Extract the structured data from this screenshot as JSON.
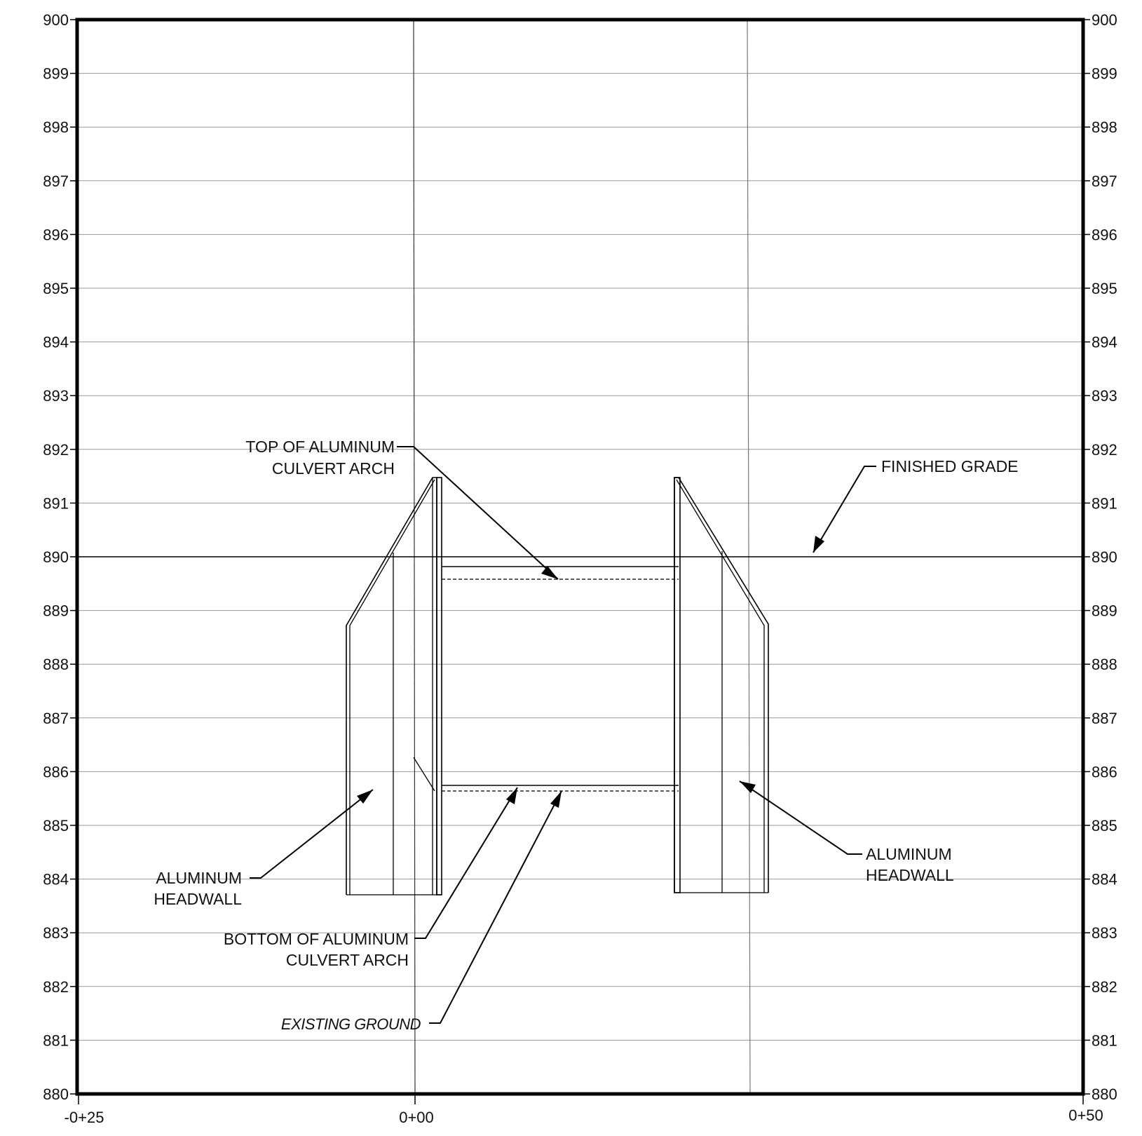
{
  "diagram": {
    "type": "culvert-profile",
    "elevation_axis": {
      "min": 880,
      "max": 900,
      "step": 1
    },
    "station_labels": {
      "left": "-0+25",
      "center": "0+00",
      "right": "0+50"
    },
    "finished_grade_elevation": 890,
    "callouts": {
      "top_arch": {
        "line1": "TOP OF ALUMINUM",
        "line2": "CULVERT ARCH"
      },
      "finished_grade": "FINISHED GRADE",
      "headwall_left": {
        "line1": "ALUMINUM",
        "line2": "HEADWALL"
      },
      "headwall_right": {
        "line1": "ALUMINUM",
        "line2": "HEADWALL"
      },
      "bottom_arch": {
        "line1": "BOTTOM OF ALUMINUM",
        "line2": "CULVERT ARCH"
      },
      "existing_ground": "EXISTING GROUND"
    }
  }
}
